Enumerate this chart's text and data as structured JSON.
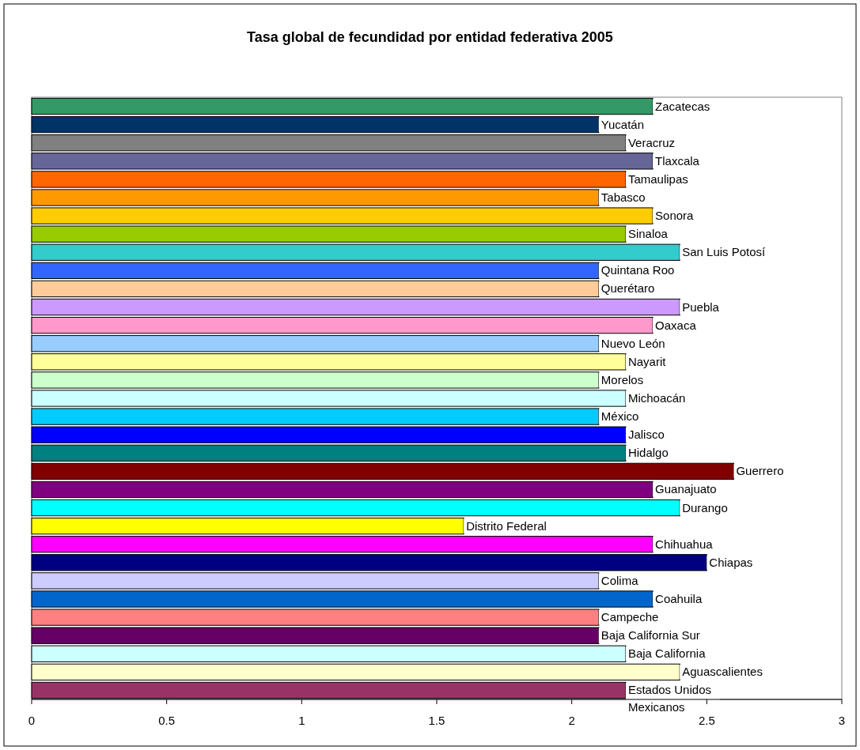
{
  "chart_data": {
    "type": "bar",
    "orientation": "horizontal",
    "title": "Tasa global de fecundidad por entidad federativa 2005",
    "categories": [
      "Zacatecas",
      "Yucatán",
      "Veracruz",
      "Tlaxcala",
      "Tamaulipas",
      "Tabasco",
      "Sonora",
      "Sinaloa",
      "San Luis Potosí",
      "Quintana Roo",
      "Querétaro",
      "Puebla",
      "Oaxaca",
      "Nuevo León",
      "Nayarit",
      "Morelos",
      "Michoacán",
      "México",
      "Jalisco",
      "Hidalgo",
      "Guerrero",
      "Guanajuato",
      "Durango",
      "Distrito Federal",
      "Chihuahua",
      "Chiapas",
      "Colima",
      "Coahuila",
      "Campeche",
      "Baja California Sur",
      "Baja California",
      "Aguascalientes",
      "Estados Unidos Mexicanos"
    ],
    "values": [
      2.3,
      2.1,
      2.2,
      2.3,
      2.2,
      2.1,
      2.3,
      2.2,
      2.4,
      2.1,
      2.1,
      2.4,
      2.3,
      2.1,
      2.2,
      2.1,
      2.2,
      2.1,
      2.2,
      2.2,
      2.6,
      2.3,
      2.4,
      1.6,
      2.3,
      2.5,
      2.1,
      2.3,
      2.1,
      2.1,
      2.2,
      2.4,
      2.2
    ],
    "colors": [
      "#339966",
      "#003366",
      "#808080",
      "#666699",
      "#ff6600",
      "#ff9900",
      "#ffcc00",
      "#99cc00",
      "#33cccc",
      "#3366ff",
      "#ffcc99",
      "#cc99ff",
      "#ff99cc",
      "#99ccff",
      "#ffff99",
      "#ccffcc",
      "#ccffff",
      "#00ccff",
      "#0000ff",
      "#008080",
      "#800000",
      "#800080",
      "#00ffff",
      "#ffff00",
      "#ff00ff",
      "#000080",
      "#ccccff",
      "#0066cc",
      "#ff8080",
      "#660066",
      "#ccffff",
      "#ffffcc",
      "#993366"
    ],
    "xlim": [
      0,
      3
    ],
    "xticks": [
      0,
      0.5,
      1,
      1.5,
      2,
      2.5,
      3
    ]
  }
}
